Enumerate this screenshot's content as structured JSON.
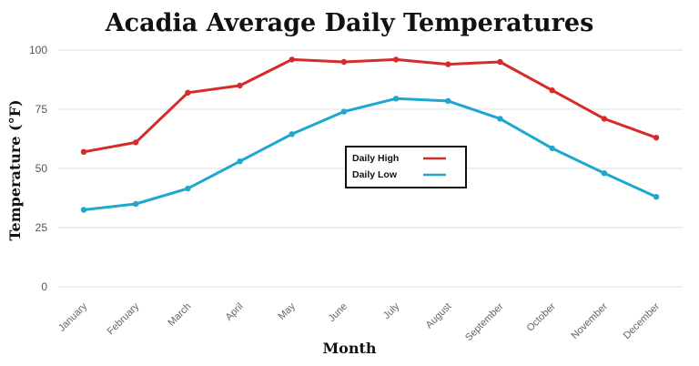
{
  "chart_data": {
    "type": "line",
    "title": "Acadia Average Daily Temperatures",
    "xlabel": "Month",
    "ylabel": "Temperature (°F)",
    "ylim": [
      0,
      100
    ],
    "yticks": [
      "0",
      "25",
      "50",
      "75",
      "100"
    ],
    "categories": [
      "January",
      "February",
      "March",
      "April",
      "May",
      "June",
      "July",
      "August",
      "September",
      "October",
      "November",
      "December"
    ],
    "grid": "horizontal",
    "legend_position": "center",
    "series": [
      {
        "name": "Daily High",
        "color": "#d42b2b",
        "values": [
          57,
          61,
          82,
          85,
          96,
          95,
          96,
          94,
          95,
          83,
          71,
          63
        ]
      },
      {
        "name": "Daily Low",
        "color": "#1ea7cf",
        "values": [
          32.5,
          35,
          41.5,
          53,
          64.5,
          74,
          79.5,
          78.5,
          71,
          58.5,
          48,
          38
        ]
      }
    ]
  }
}
